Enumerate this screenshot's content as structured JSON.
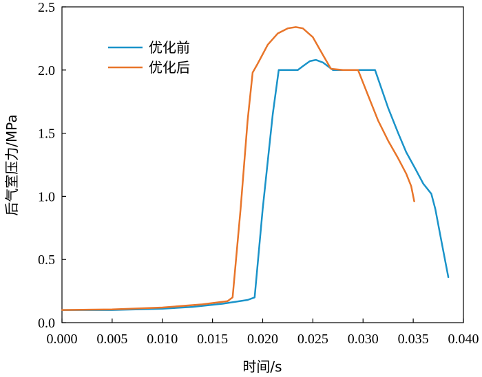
{
  "chart_data": {
    "type": "line",
    "xlabel": "时间/s",
    "ylabel": "后气室压力/MPa",
    "xlim": [
      0.0,
      0.04
    ],
    "ylim": [
      0.0,
      2.5
    ],
    "xticks": [
      "0.000",
      "0.005",
      "0.010",
      "0.015",
      "0.020",
      "0.025",
      "0.030",
      "0.035",
      "0.040"
    ],
    "yticks": [
      "0.0",
      "0.5",
      "1.0",
      "1.5",
      "2.0",
      "2.5"
    ],
    "grid": false,
    "legend_position": "top-left",
    "series": [
      {
        "name": "优化前",
        "color": "#1a93c9",
        "points": [
          [
            0.0,
            0.1
          ],
          [
            0.005,
            0.1
          ],
          [
            0.01,
            0.11
          ],
          [
            0.013,
            0.125
          ],
          [
            0.016,
            0.15
          ],
          [
            0.0185,
            0.18
          ],
          [
            0.0192,
            0.2
          ],
          [
            0.02,
            0.9
          ],
          [
            0.021,
            1.65
          ],
          [
            0.0216,
            2.0
          ],
          [
            0.0235,
            2.0
          ],
          [
            0.024,
            2.03
          ],
          [
            0.0247,
            2.07
          ],
          [
            0.0253,
            2.08
          ],
          [
            0.026,
            2.06
          ],
          [
            0.027,
            2.0
          ],
          [
            0.029,
            2.0
          ],
          [
            0.0312,
            2.0
          ],
          [
            0.0325,
            1.7
          ],
          [
            0.0335,
            1.5
          ],
          [
            0.0343,
            1.35
          ],
          [
            0.0352,
            1.22
          ],
          [
            0.036,
            1.1
          ],
          [
            0.0368,
            1.02
          ],
          [
            0.0372,
            0.9
          ],
          [
            0.0378,
            0.65
          ],
          [
            0.0385,
            0.36
          ]
        ]
      },
      {
        "name": "优化后",
        "color": "#e8752a",
        "points": [
          [
            0.0,
            0.1
          ],
          [
            0.005,
            0.105
          ],
          [
            0.01,
            0.12
          ],
          [
            0.014,
            0.145
          ],
          [
            0.0165,
            0.17
          ],
          [
            0.017,
            0.2
          ],
          [
            0.0178,
            0.9
          ],
          [
            0.0185,
            1.6
          ],
          [
            0.019,
            1.98
          ],
          [
            0.0195,
            2.05
          ],
          [
            0.0205,
            2.2
          ],
          [
            0.0215,
            2.29
          ],
          [
            0.0225,
            2.33
          ],
          [
            0.0233,
            2.34
          ],
          [
            0.024,
            2.33
          ],
          [
            0.025,
            2.26
          ],
          [
            0.026,
            2.12
          ],
          [
            0.0268,
            2.01
          ],
          [
            0.028,
            2.0
          ],
          [
            0.0295,
            2.0
          ],
          [
            0.0305,
            1.8
          ],
          [
            0.0315,
            1.6
          ],
          [
            0.0325,
            1.44
          ],
          [
            0.0335,
            1.3
          ],
          [
            0.0343,
            1.18
          ],
          [
            0.0348,
            1.08
          ],
          [
            0.0351,
            0.96
          ]
        ]
      }
    ]
  }
}
